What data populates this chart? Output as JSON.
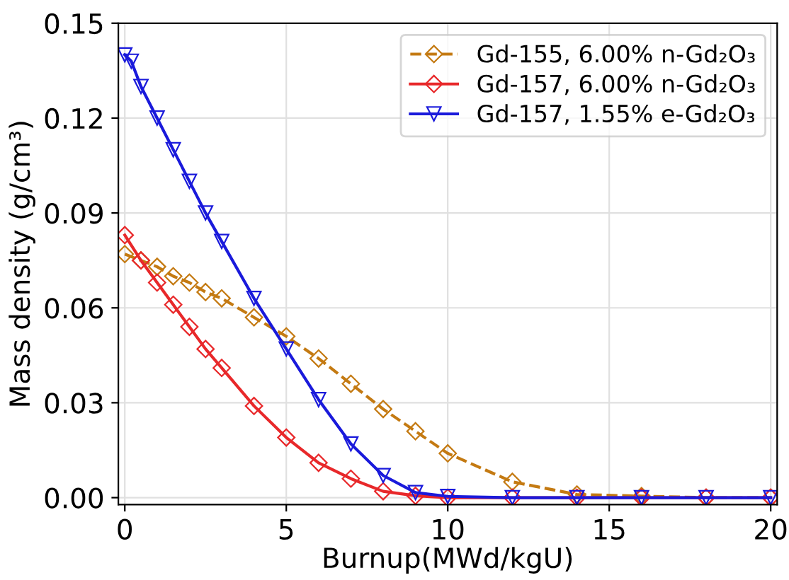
{
  "chart_data": {
    "type": "line",
    "xlabel": "Burnup(MWd/kgU)",
    "ylabel": "Mass density (g/cm³)",
    "xlim": [
      -0.2,
      20.2
    ],
    "ylim": [
      -0.0022,
      0.15
    ],
    "xticks": [
      0,
      5,
      10,
      15,
      20
    ],
    "yticks": [
      {
        "value": 0,
        "label": "0.00"
      },
      {
        "value": 0.03,
        "label": "0.03"
      },
      {
        "value": 0.06,
        "label": "0.06"
      },
      {
        "value": 0.09,
        "label": "0.09"
      },
      {
        "value": 0.12,
        "label": "0.12"
      },
      {
        "value": 0.15,
        "label": "0.15"
      }
    ],
    "grid": true,
    "legend": "top right",
    "series": [
      {
        "name": "Gd-155, 6.00% n-Gd₂O₃",
        "color": "#c47a12",
        "line_style": "dashed",
        "marker": "diamond",
        "x": [
          0,
          0.5,
          1,
          1.5,
          2,
          2.5,
          3,
          4,
          5,
          6,
          7,
          8,
          9,
          10,
          12,
          14,
          16,
          18,
          20
        ],
        "values": [
          0.077,
          0.075,
          0.073,
          0.07,
          0.068,
          0.065,
          0.063,
          0.057,
          0.051,
          0.044,
          0.036,
          0.028,
          0.021,
          0.014,
          0.005,
          0.001,
          0.0005,
          0,
          0
        ]
      },
      {
        "name": "Gd-157, 6.00% n-Gd₂O₃",
        "color": "#e8282a",
        "line_style": "solid",
        "marker": "diamond",
        "x": [
          0,
          0.5,
          1,
          1.5,
          2,
          2.5,
          3,
          4,
          5,
          6,
          7,
          8,
          9,
          10,
          12,
          14,
          16,
          18,
          20
        ],
        "values": [
          0.083,
          0.075,
          0.068,
          0.061,
          0.054,
          0.047,
          0.041,
          0.029,
          0.019,
          0.011,
          0.006,
          0.002,
          0.0006,
          0,
          0,
          0,
          0,
          0,
          0
        ]
      },
      {
        "name": "Gd-157, 1.55% e-Gd₂O₃",
        "color": "#1a1adb",
        "line_style": "solid",
        "marker": "triangle",
        "x": [
          0,
          0.2,
          0.5,
          1,
          1.5,
          2,
          2.5,
          3,
          4,
          5,
          6,
          7,
          8,
          9,
          10,
          12,
          14,
          16,
          18,
          20
        ],
        "values": [
          0.14,
          0.138,
          0.13,
          0.12,
          0.11,
          0.1,
          0.09,
          0.081,
          0.063,
          0.047,
          0.031,
          0.017,
          0.007,
          0.0016,
          0.0004,
          0,
          0,
          0,
          0,
          0
        ]
      }
    ]
  }
}
